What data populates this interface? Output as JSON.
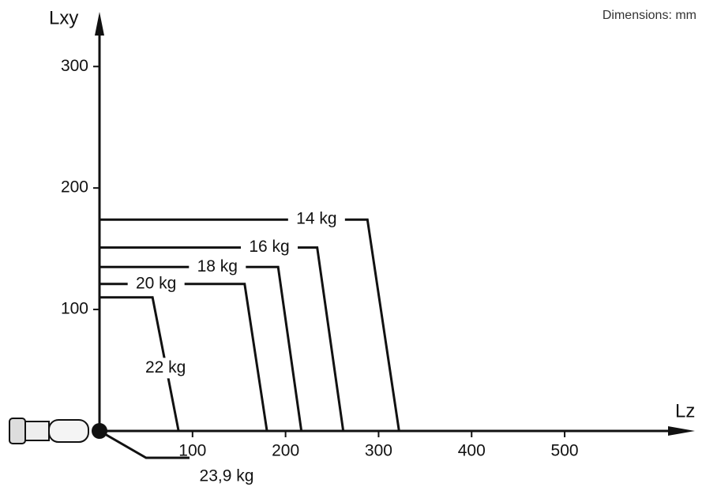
{
  "chart_data": {
    "type": "line",
    "note": "Dimensions: mm",
    "x_label": "Lz",
    "y_label": "Lxy",
    "annotation": "23,9 kg",
    "xlim": [
      0,
      640
    ],
    "ylim": [
      0,
      345
    ],
    "xticks": [
      100,
      200,
      300,
      400,
      500
    ],
    "yticks": [
      100,
      200,
      300
    ],
    "series": [
      {
        "name": "14 kg",
        "color": "#111111",
        "x": [
          0,
          288,
          322
        ],
        "values": [
          174,
          174,
          0
        ]
      },
      {
        "name": "16 kg",
        "color": "#111111",
        "x": [
          0,
          234,
          262
        ],
        "values": [
          151,
          151,
          0
        ]
      },
      {
        "name": "18 kg",
        "color": "#111111",
        "x": [
          0,
          192,
          217
        ],
        "values": [
          135,
          135,
          0
        ]
      },
      {
        "name": "20 kg",
        "color": "#111111",
        "x": [
          0,
          156,
          180
        ],
        "values": [
          121,
          121,
          0
        ]
      },
      {
        "name": "22 kg",
        "color": "#111111",
        "x": [
          0,
          57,
          85
        ],
        "values": [
          110,
          110,
          0
        ]
      }
    ]
  }
}
